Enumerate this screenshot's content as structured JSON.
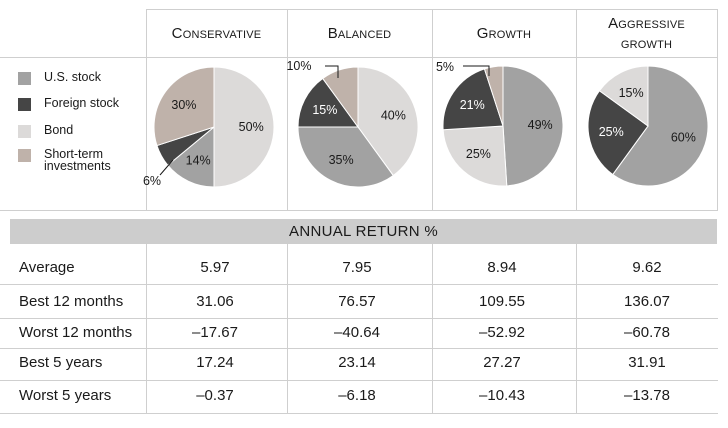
{
  "column_headers": [
    {
      "line1": "Conservative",
      "line2": ""
    },
    {
      "line1": "Balanced",
      "line2": ""
    },
    {
      "line1": "Growth",
      "line2": ""
    },
    {
      "line1": "Aggressive",
      "line2": "growth"
    }
  ],
  "legend": [
    {
      "label": "U.S. stock",
      "color": "#a2a2a2"
    },
    {
      "label": "Foreign stock",
      "color": "#454545"
    },
    {
      "label": "Bond",
      "color": "#dcdad9"
    },
    {
      "label": "Short-term investments",
      "color": "#bfb2aa"
    }
  ],
  "section_title": "ANNUAL RETURN %",
  "chart_data": [
    {
      "type": "pie",
      "title": "Conservative",
      "categories": [
        "U.S. stock",
        "Foreign stock",
        "Bond",
        "Short-term investments"
      ],
      "values": [
        14,
        6,
        50,
        30
      ],
      "labels": [
        "14%",
        "6%",
        "50%",
        "30%"
      ]
    },
    {
      "type": "pie",
      "title": "Balanced",
      "categories": [
        "U.S. stock",
        "Foreign stock",
        "Bond",
        "Short-term investments"
      ],
      "values": [
        35,
        15,
        40,
        10
      ],
      "labels": [
        "35%",
        "15%",
        "40%",
        "10%"
      ]
    },
    {
      "type": "pie",
      "title": "Growth",
      "categories": [
        "U.S. stock",
        "Foreign stock",
        "Bond",
        "Short-term investments"
      ],
      "values": [
        49,
        21,
        25,
        5
      ],
      "labels": [
        "49%",
        "21%",
        "25%",
        "5%"
      ]
    },
    {
      "type": "pie",
      "title": "Aggressive growth",
      "categories": [
        "U.S. stock",
        "Foreign stock",
        "Bond",
        "Short-term investments"
      ],
      "values": [
        60,
        25,
        15,
        0
      ],
      "labels": [
        "60%",
        "25%",
        "15%",
        ""
      ]
    },
    {
      "type": "table",
      "title": "ANNUAL RETURN %",
      "columns": [
        "Conservative",
        "Balanced",
        "Growth",
        "Aggressive growth"
      ],
      "rows": [
        {
          "label": "Average",
          "values": [
            "5.97",
            "7.95",
            "8.94",
            "9.62"
          ]
        },
        {
          "label": "Best 12 months",
          "values": [
            "31.06",
            "76.57",
            "109.55",
            "136.07"
          ]
        },
        {
          "label": "Worst 12 months",
          "values": [
            "–17.67",
            "–40.64",
            "–52.92",
            "–60.78"
          ]
        },
        {
          "label": "Best 5 years",
          "values": [
            "17.24",
            "23.14",
            "27.27",
            "31.91"
          ]
        },
        {
          "label": "Worst 5 years",
          "values": [
            "–0.37",
            "–6.18",
            "–10.43",
            "–13.78"
          ]
        }
      ]
    }
  ]
}
